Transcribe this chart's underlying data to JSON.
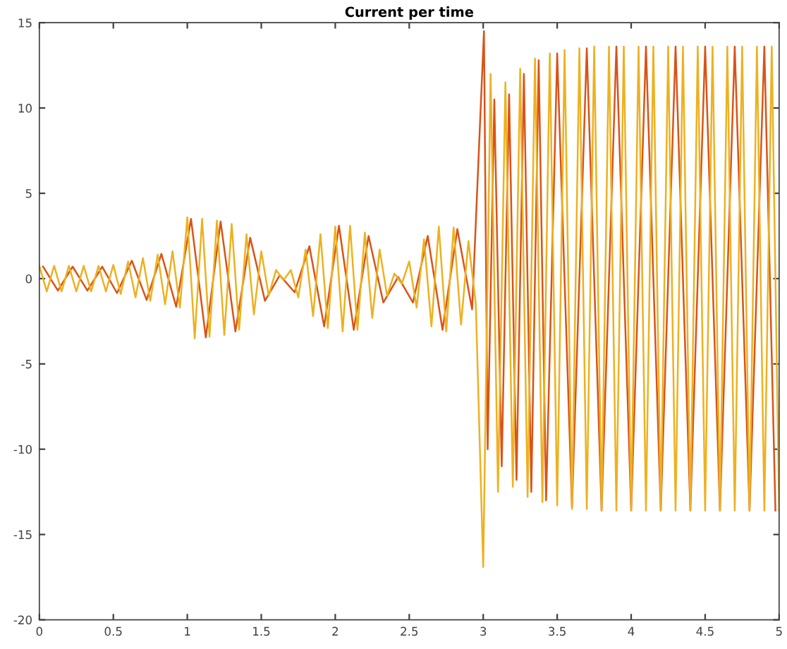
{
  "chart_data": {
    "type": "line",
    "title": "Current per time",
    "xlim": [
      0,
      5
    ],
    "xticks": [
      0,
      0.5,
      1,
      1.5,
      2,
      2.5,
      3,
      3.5,
      4,
      4.5,
      5
    ],
    "ylim": [
      -20,
      15
    ],
    "yticks": [
      -20,
      -15,
      -10,
      -5,
      0,
      5,
      10,
      15
    ],
    "grid": false,
    "marker": "none",
    "line_style": "solid",
    "series": [
      {
        "color": "#d95319",
        "x": [
          0.025,
          0.125,
          0.225,
          0.325,
          0.425,
          0.525,
          0.625,
          0.725,
          0.825,
          0.925,
          1.025,
          1.125,
          1.225,
          1.325,
          1.425,
          1.525,
          1.625,
          1.725,
          1.825,
          1.925,
          2.025,
          2.125,
          2.225,
          2.325,
          2.425,
          2.525,
          2.625,
          2.725,
          2.825,
          2.925,
          3.005,
          3.03,
          3.075,
          3.125,
          3.175,
          3.225,
          3.275,
          3.325,
          3.375,
          3.425,
          3.5,
          3.6,
          3.7,
          3.8,
          3.9,
          4.0,
          4.1,
          4.2,
          4.3,
          4.4,
          4.5,
          4.6,
          4.7,
          4.8,
          4.9,
          4.975
        ],
        "values": [
          0.7,
          -0.7,
          0.7,
          -0.7,
          0.7,
          -0.85,
          1.05,
          -1.25,
          1.45,
          -1.65,
          3.5,
          -3.45,
          3.35,
          -3.1,
          2.4,
          -1.3,
          0.2,
          -0.8,
          1.9,
          -2.8,
          3.1,
          -3.0,
          2.5,
          -1.4,
          0.1,
          -1.4,
          2.5,
          -3.0,
          2.9,
          -1.8,
          14.5,
          -10.0,
          10.5,
          -11.0,
          10.8,
          -11.8,
          12.0,
          -12.5,
          12.8,
          -13.0,
          13.2,
          -13.4,
          13.5,
          -13.6,
          13.6,
          -13.6,
          13.6,
          -13.6,
          13.6,
          -13.6,
          13.6,
          -13.6,
          13.6,
          -13.6,
          13.6,
          -13.6
        ]
      },
      {
        "color": "#edb120",
        "x": [
          0,
          0.05,
          0.1,
          0.15,
          0.2,
          0.25,
          0.3,
          0.35,
          0.4,
          0.45,
          0.5,
          0.55,
          0.6,
          0.65,
          0.7,
          0.75,
          0.8,
          0.85,
          0.9,
          0.95,
          1.0,
          1.05,
          1.1,
          1.15,
          1.2,
          1.25,
          1.3,
          1.35,
          1.4,
          1.45,
          1.5,
          1.55,
          1.6,
          1.65,
          1.7,
          1.75,
          1.8,
          1.85,
          1.9,
          1.95,
          2.0,
          2.05,
          2.1,
          2.15,
          2.2,
          2.25,
          2.3,
          2.35,
          2.4,
          2.45,
          2.5,
          2.55,
          2.6,
          2.65,
          2.7,
          2.75,
          2.8,
          2.85,
          2.9,
          2.95,
          3.0,
          3.05,
          3.1,
          3.15,
          3.2,
          3.25,
          3.3,
          3.35,
          3.4,
          3.45,
          3.5,
          3.55,
          3.6,
          3.65,
          3.7,
          3.75,
          3.8,
          3.85,
          3.9,
          3.95,
          4.0,
          4.05,
          4.1,
          4.15,
          4.2,
          4.25,
          4.3,
          4.35,
          4.4,
          4.45,
          4.5,
          4.55,
          4.6,
          4.65,
          4.7,
          4.75,
          4.8,
          4.85,
          4.9,
          4.95,
          5.0
        ],
        "values": [
          0.75,
          -0.75,
          0.75,
          -0.75,
          0.75,
          -0.75,
          0.75,
          -0.75,
          0.75,
          -0.75,
          0.8,
          -0.9,
          1.0,
          -1.1,
          1.2,
          -1.3,
          1.4,
          -1.5,
          1.6,
          -1.7,
          3.6,
          -3.5,
          3.5,
          -3.4,
          3.4,
          -3.3,
          3.2,
          -3.0,
          2.6,
          -2.1,
          1.6,
          -1.0,
          0.5,
          -0.1,
          0.5,
          -1.1,
          1.7,
          -2.2,
          2.6,
          -2.9,
          3.05,
          -3.1,
          3.1,
          -3.0,
          2.7,
          -2.3,
          1.7,
          -1.0,
          0.3,
          -0.3,
          1.0,
          -1.7,
          2.3,
          -2.8,
          3.05,
          -3.1,
          3.0,
          -2.7,
          2.2,
          -1.5,
          -16.9,
          12.0,
          -12.5,
          11.5,
          -12.2,
          12.3,
          -12.8,
          12.9,
          -13.1,
          13.2,
          -13.3,
          13.4,
          -13.5,
          13.5,
          -13.5,
          13.6,
          -13.6,
          13.6,
          -13.6,
          13.6,
          -13.6,
          13.6,
          -13.6,
          13.6,
          -13.6,
          13.6,
          -13.6,
          13.6,
          -13.6,
          13.6,
          -13.6,
          13.6,
          -13.6,
          13.6,
          -13.6,
          13.6,
          -13.6,
          13.6,
          -13.6,
          13.6,
          -13.6
        ]
      }
    ]
  }
}
